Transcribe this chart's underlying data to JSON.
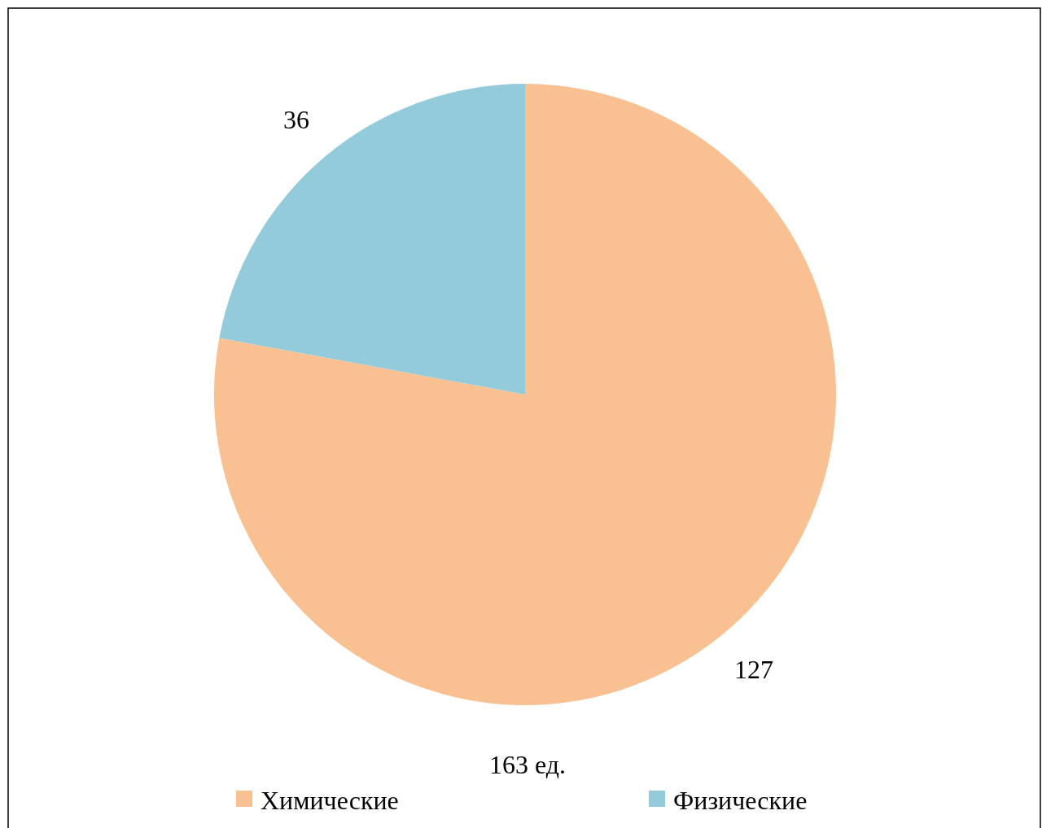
{
  "chart_data": {
    "type": "pie",
    "categories": [
      "Химические",
      "Физические"
    ],
    "values": [
      127,
      36
    ],
    "colors": [
      "#f9c192",
      "#94cbdb"
    ],
    "data_labels": true,
    "legend": "bottom",
    "annotations": [
      "163 ед."
    ]
  }
}
